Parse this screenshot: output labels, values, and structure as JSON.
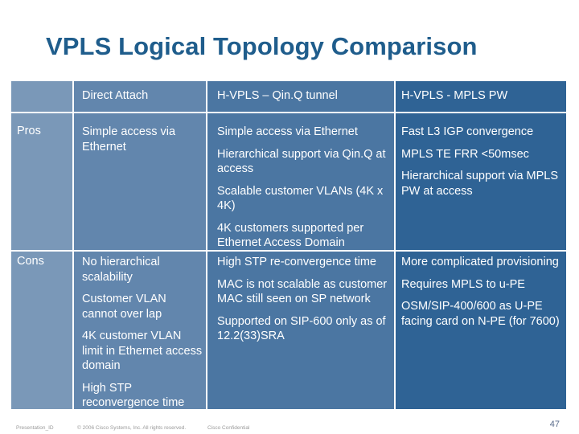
{
  "title": "VPLS Logical Topology Comparison",
  "headers": [
    "Direct Attach",
    "H-VPLS – Qin.Q tunnel",
    "H-VPLS - MPLS PW"
  ],
  "rows": {
    "pros": {
      "label": "Pros",
      "direct": [
        "Simple access via Ethernet"
      ],
      "qinq": [
        "Simple access via Ethernet",
        "Hierarchical support via Qin.Q at access",
        "Scalable customer VLANs (4K x 4K)",
        "4K customers supported per Ethernet Access Domain"
      ],
      "mpls": [
        "Fast L3 IGP convergence",
        "MPLS TE FRR <50msec",
        "Hierarchical support via MPLS PW at access"
      ]
    },
    "cons": {
      "label": "Cons",
      "direct": [
        "No hierarchical scalability",
        "Customer VLAN cannot over lap",
        "4K customer VLAN limit in Ethernet access domain",
        "High STP reconvergence time"
      ],
      "qinq": [
        "High STP re-convergence time",
        "MAC is not scalable as customer MAC still seen on SP network",
        "Supported on SIP-600 only as of 12.2(33)SRA"
      ],
      "mpls": [
        "More complicated provisioning",
        "Requires MPLS to u-PE",
        "OSM/SIP-400/600 as U-PE facing card on N-PE (for 7600)"
      ]
    }
  },
  "footer": {
    "presentation_id": "Presentation_ID",
    "copyright": "© 2006 Cisco Systems, Inc. All rights reserved.",
    "confidential": "Cisco Confidential",
    "page": "47"
  },
  "colors": {
    "title": "#1f5d8c",
    "col_label": "#7a98b8",
    "col_direct": "#6286ad",
    "col_qinq": "#4b76a2",
    "col_mpls": "#2f6395"
  }
}
